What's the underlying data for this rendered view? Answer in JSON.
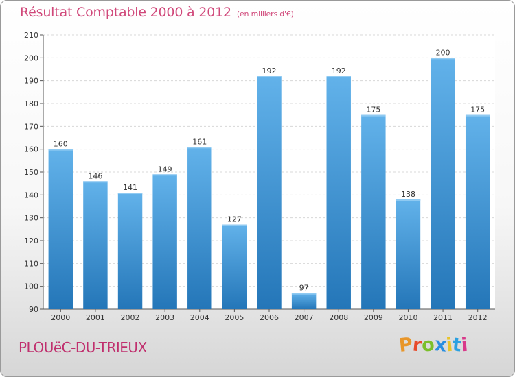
{
  "header": {
    "title": "Résultat Comptable 2000 à 2012",
    "subtitle": "(en milliers d'€)"
  },
  "footer": {
    "commune": "PLOUëC-DU-TRIEUX",
    "logo": "Proxiti"
  },
  "colors": {
    "bar_light": "#62b2ea",
    "bar_dark": "#2476b8",
    "title": "#d0487a",
    "logo_letters": [
      "#e8962a",
      "#e84a2a",
      "#7bbf2a",
      "#2a8ee0",
      "#e8c42a",
      "#2aa0e0",
      "#d83a8a"
    ]
  },
  "chart_data": {
    "type": "bar",
    "categories": [
      "2000",
      "2001",
      "2002",
      "2003",
      "2004",
      "2005",
      "2006",
      "2007",
      "2008",
      "2009",
      "2010",
      "2011",
      "2012"
    ],
    "values": [
      160,
      146,
      141,
      149,
      161,
      127,
      192,
      97,
      192,
      175,
      138,
      200,
      175
    ],
    "title": "Résultat Comptable 2000 à 2012",
    "xlabel": "",
    "ylabel": "",
    "ylim": [
      90,
      210
    ],
    "yticks": [
      90,
      100,
      110,
      120,
      130,
      140,
      150,
      160,
      170,
      180,
      190,
      200,
      210
    ],
    "grid": true,
    "legend": "none"
  }
}
